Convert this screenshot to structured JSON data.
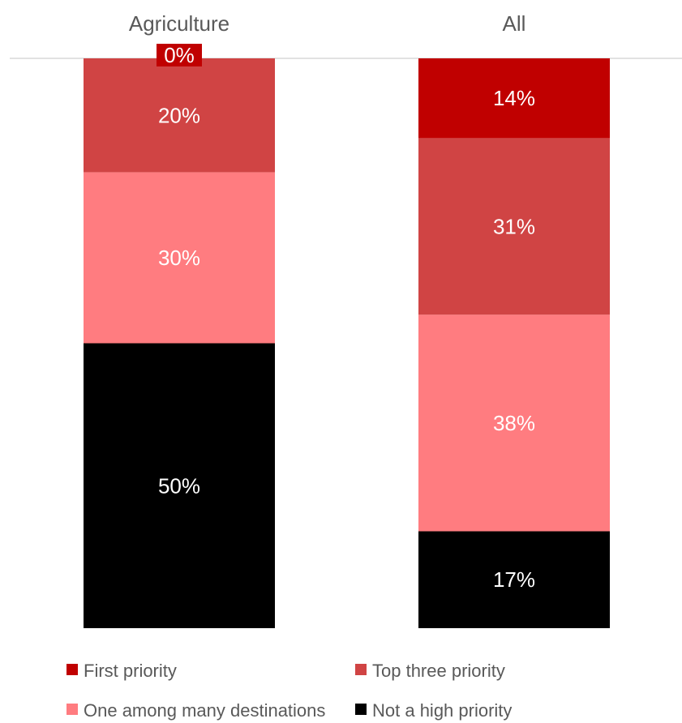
{
  "chart_data": {
    "type": "bar",
    "stacked": true,
    "orientation": "vertical",
    "categories": [
      "Agriculture",
      "All"
    ],
    "series": [
      {
        "name": "First priority",
        "values": [
          0,
          14
        ],
        "labels": [
          "0%",
          "14%"
        ],
        "color": "#c00000"
      },
      {
        "name": "Top three priority",
        "values": [
          20,
          31
        ],
        "labels": [
          "20%",
          "31%"
        ],
        "color": "#d04444"
      },
      {
        "name": "One among many destinations",
        "values": [
          30,
          38
        ],
        "labels": [
          "30%",
          "38%"
        ],
        "color": "#ff7c80"
      },
      {
        "name": "Not a high priority",
        "values": [
          50,
          17
        ],
        "labels": [
          "50%",
          "17%"
        ],
        "color": "#000000"
      }
    ],
    "value_unit": "%",
    "category_axis_position": "top",
    "grid": false,
    "legend": {
      "position": "bottom"
    }
  }
}
